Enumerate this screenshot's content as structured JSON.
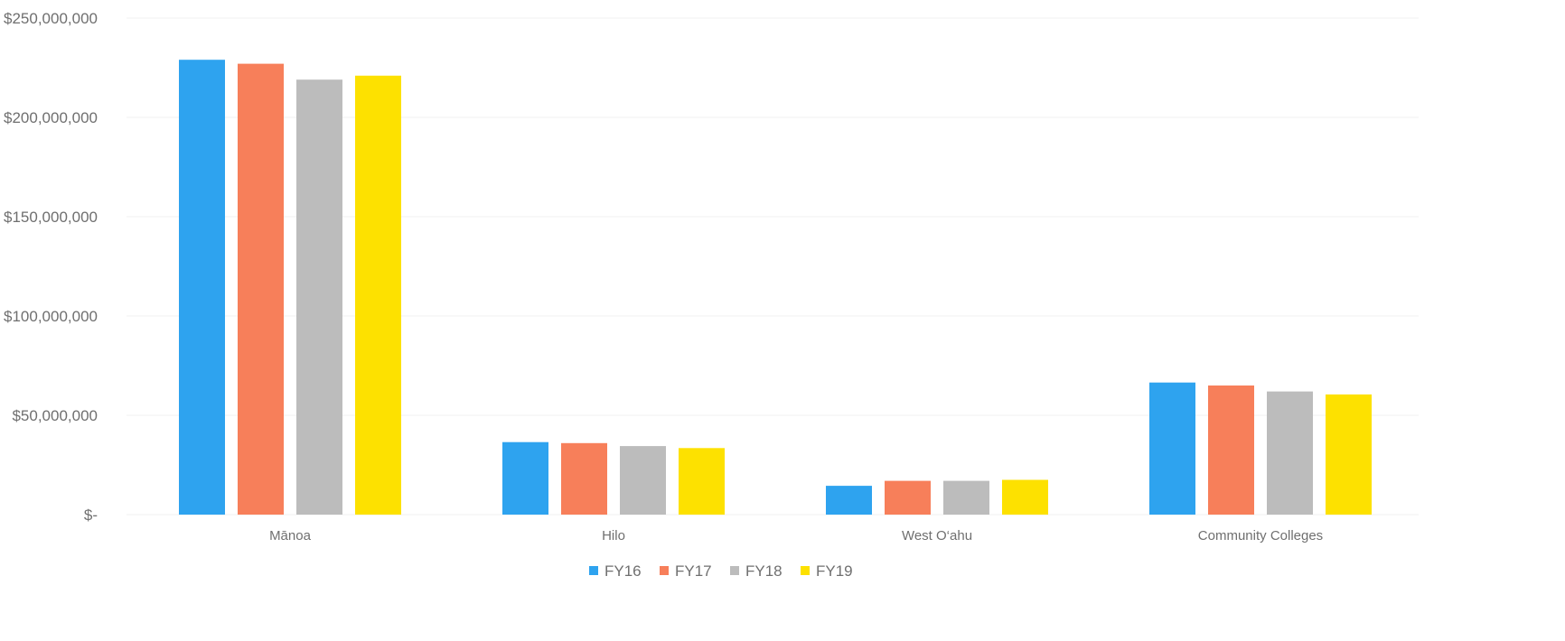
{
  "chart_data": {
    "type": "bar",
    "title": "",
    "xlabel": "",
    "ylabel": "",
    "categories": [
      "Mānoa",
      "Hilo",
      "West O‘ahu",
      "Community Colleges"
    ],
    "series": [
      {
        "name": "FY16",
        "color": "#2ea3ef",
        "values": [
          229000000,
          36500000,
          14500000,
          66500000
        ]
      },
      {
        "name": "FY17",
        "color": "#f77f5a",
        "values": [
          227000000,
          36000000,
          17000000,
          65000000
        ]
      },
      {
        "name": "FY18",
        "color": "#bcbcbc",
        "values": [
          219000000,
          34500000,
          17000000,
          62000000
        ]
      },
      {
        "name": "FY19",
        "color": "#fde100",
        "values": [
          221000000,
          33500000,
          17500000,
          60500000
        ]
      }
    ],
    "ylim": [
      0,
      250000000
    ],
    "y_ticks": [
      {
        "value": 0,
        "label": "$-"
      },
      {
        "value": 50000000,
        "label": "$50,000,000"
      },
      {
        "value": 100000000,
        "label": "$100,000,000"
      },
      {
        "value": 150000000,
        "label": "$150,000,000"
      },
      {
        "value": 200000000,
        "label": "$200,000,000"
      },
      {
        "value": 250000000,
        "label": "$250,000,000"
      }
    ],
    "grid": true,
    "legend_position": "bottom-center"
  }
}
